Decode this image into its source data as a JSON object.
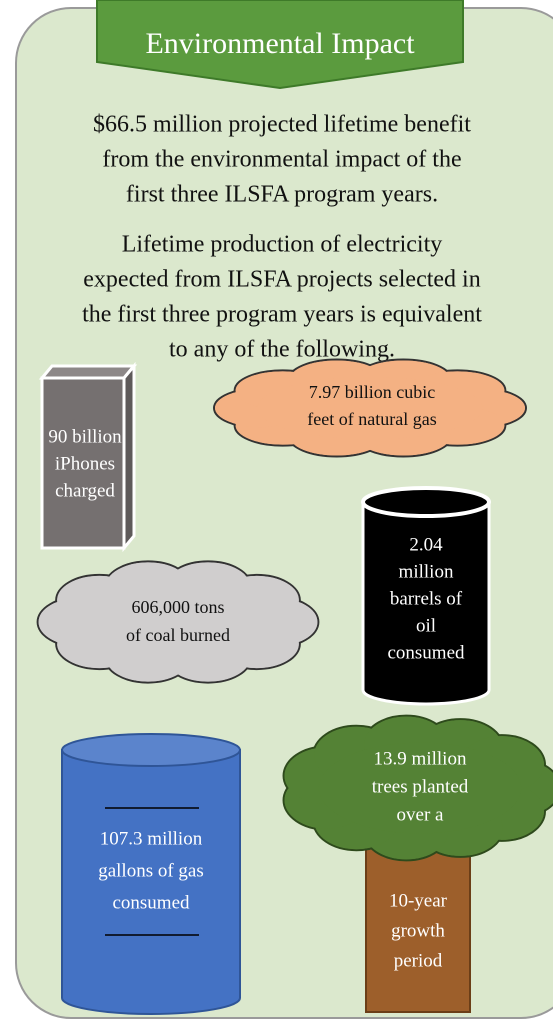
{
  "banner": "Environmental Impact",
  "intro": {
    "lines": [
      "$66.5 million projected lifetime benefit",
      "from the environmental impact of the",
      "first three ILSFA program years."
    ]
  },
  "equivalence": {
    "lines": [
      "Lifetime production of electricity",
      "expected from ILSFA projects selected in",
      "the first three program years is equivalent",
      "to any of the following."
    ]
  },
  "items": [
    {
      "lines": [
        "90 billion",
        "iPhones",
        "charged"
      ]
    },
    {
      "lines": [
        "7.97 billion cubic",
        "feet of natural gas"
      ]
    },
    {
      "lines": [
        "2.04",
        "million",
        "barrels of",
        "oil",
        "consumed"
      ]
    },
    {
      "lines": [
        "606,000 tons",
        "of coal burned"
      ]
    },
    {
      "lines": [
        "107.3 million",
        "gallons of gas",
        "consumed"
      ]
    },
    {
      "lines": [
        "13.9 million",
        "trees planted",
        "over a"
      ]
    },
    {
      "lines": [
        "10-year",
        "growth",
        "period"
      ]
    }
  ]
}
